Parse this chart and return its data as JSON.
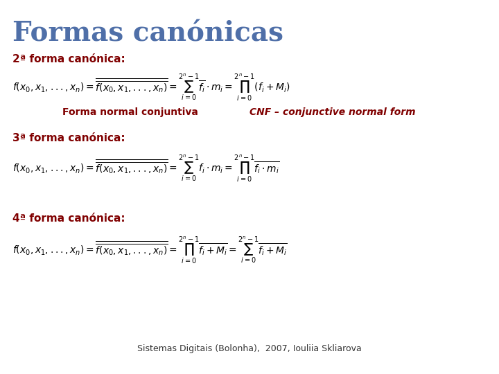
{
  "background_color": "#ffffff",
  "title": "Formas canónicas",
  "title_color": "#4f6fa8",
  "title_fontsize": 28,
  "subtitle_color": "#800000",
  "subtitle_fontsize": 11,
  "formula_color": "#000000",
  "formula_fontsize": 10,
  "label_color": "#800000",
  "label_fontsize": 10,
  "footer_text": "Sistemas Digitais (Bolonha),  2007, Iouliia Skliarova",
  "footer_fontsize": 9,
  "footer_color": "#333333",
  "section2_label": "2ª forma canónica:",
  "section3_label": "3ª forma canónica:",
  "section4_label": "4ª forma canónica:",
  "forma_normal_label": "Forma normal conjuntiva",
  "cnf_label": "CNF – conjunctive normal form"
}
